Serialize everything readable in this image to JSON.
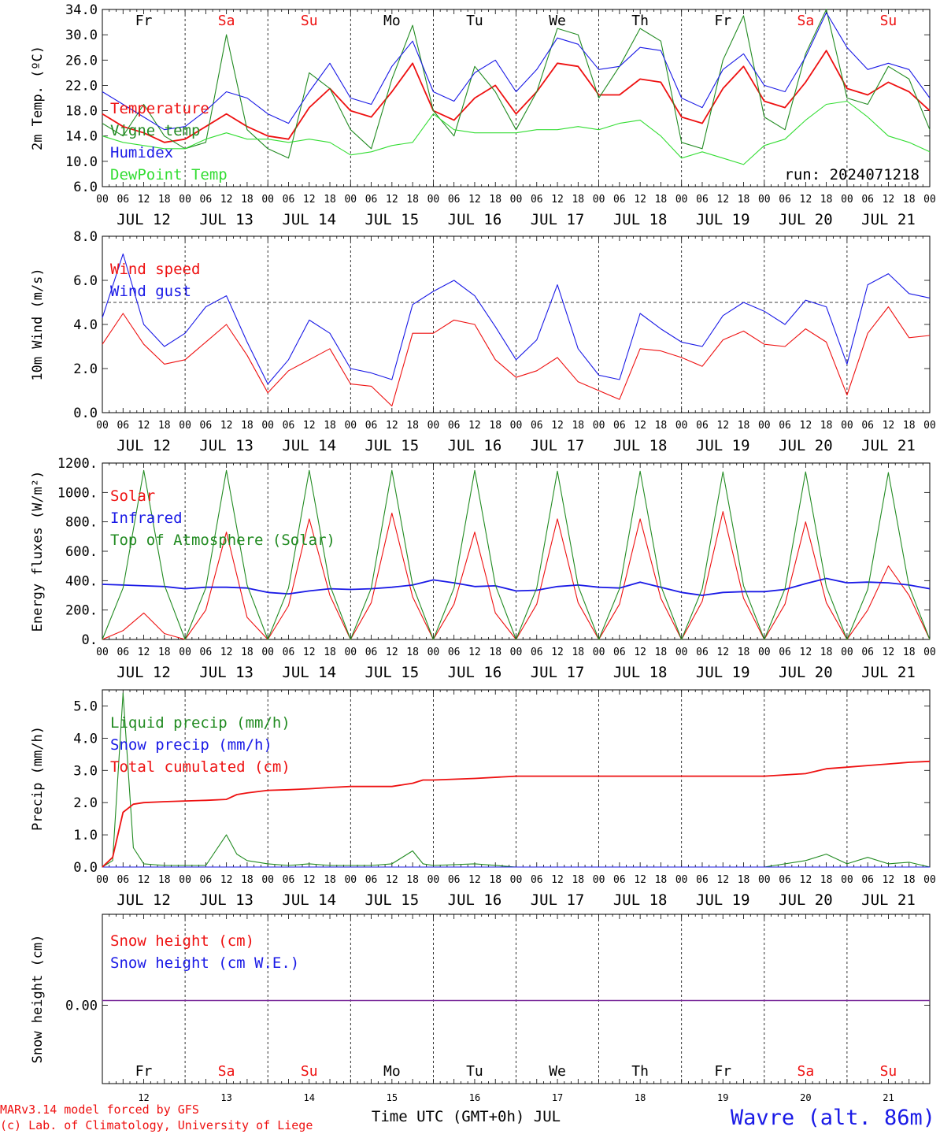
{
  "colors": {
    "red": "#ee1111",
    "blue": "#1a1ae6",
    "dark_green": "#228b22",
    "light_green": "#33dd33",
    "purple": "#7a2a9a",
    "axis": "#000000"
  },
  "days": [
    "Fr",
    "Sa",
    "Su",
    "Mo",
    "Tu",
    "We",
    "Th",
    "Fr",
    "Sa",
    "Su"
  ],
  "day_colors": [
    "#000000",
    "#ee1111",
    "#ee1111",
    "#000000",
    "#000000",
    "#000000",
    "#000000",
    "#000000",
    "#ee1111",
    "#ee1111"
  ],
  "dates": [
    "JUL 12",
    "JUL 13",
    "JUL 14",
    "JUL 15",
    "JUL 16",
    "JUL 17",
    "JUL 18",
    "JUL 19",
    "JUL 20",
    "JUL 21"
  ],
  "day_numbers": [
    "12",
    "13",
    "14",
    "15",
    "16",
    "17",
    "18",
    "19",
    "20",
    "21"
  ],
  "hour_ticks": [
    "00",
    "06",
    "12",
    "18"
  ],
  "run_label": "run: 2024071218",
  "footer": {
    "credit_line1": "MARv3.14 model forced by GFS",
    "credit_line2": "(c) Lab. of Climatology, University of Liege",
    "xlabel": "Time UTC (GMT+0h) JUL",
    "station": "Wavre (alt. 86m)"
  },
  "chart_data": [
    {
      "type": "line",
      "ylabel": "2m Temp. (ºC)",
      "ylim": [
        6,
        34
      ],
      "yticks": [
        "34.0",
        "30.0",
        "26.0",
        "22.0",
        "18.0",
        "14.0",
        "10.0",
        "6.0"
      ],
      "x": [
        "07-12 00",
        "07-12 06",
        "07-12 12",
        "07-12 18",
        "07-13 00",
        "07-13 06",
        "07-13 12",
        "07-13 18",
        "07-14 00",
        "07-14 06",
        "07-14 12",
        "07-14 18",
        "07-15 00",
        "07-15 06",
        "07-15 12",
        "07-15 18",
        "07-16 00",
        "07-16 06",
        "07-16 12",
        "07-16 18",
        "07-17 00",
        "07-17 06",
        "07-17 12",
        "07-17 18",
        "07-18 00",
        "07-18 06",
        "07-18 12",
        "07-18 18",
        "07-19 00",
        "07-19 06",
        "07-19 12",
        "07-19 18",
        "07-20 00",
        "07-20 06",
        "07-20 12",
        "07-20 18",
        "07-21 00",
        "07-21 06",
        "07-21 12",
        "07-21 18",
        "07-22 00"
      ],
      "series": [
        {
          "name": "Temperature",
          "color": "#ee1111",
          "values": [
            17.5,
            15.5,
            14.5,
            13,
            13.5,
            15.5,
            17.5,
            15.5,
            14,
            13.5,
            18.5,
            21.5,
            18,
            17,
            21,
            25.5,
            18,
            16.5,
            20,
            22,
            17.5,
            21,
            25.5,
            25,
            20.5,
            20.5,
            23,
            22.5,
            17,
            16,
            21.5,
            25,
            19.5,
            18.5,
            22.5,
            27.5,
            21.5,
            20.5,
            22.5,
            21,
            18
          ]
        },
        {
          "name": "Vigne temp",
          "color": "#228b22",
          "values": [
            16,
            14,
            19,
            14,
            12,
            13,
            30,
            15,
            12,
            10.5,
            24,
            21.5,
            15,
            12,
            23,
            31.5,
            18,
            14,
            25,
            21,
            15,
            21,
            31,
            30,
            20,
            25,
            31,
            29,
            13,
            12,
            26,
            33,
            17,
            15,
            27,
            34,
            20,
            19,
            25,
            23,
            15
          ]
        },
        {
          "name": "Humidex",
          "color": "#1a1ae6",
          "values": [
            21,
            19,
            17,
            15,
            15.5,
            18,
            21,
            20,
            17.5,
            16,
            21,
            25.5,
            20,
            19,
            25,
            29,
            21,
            19.5,
            24,
            26,
            21,
            24.5,
            29.5,
            28.5,
            24.5,
            25,
            28,
            27.5,
            20,
            18.5,
            24.5,
            27,
            22,
            21,
            26.5,
            33.5,
            28,
            24.5,
            25.5,
            24.5,
            20
          ]
        },
        {
          "name": "DewPoint Temp",
          "color": "#33dd33",
          "values": [
            14,
            13,
            12.5,
            12,
            12,
            13.5,
            14.5,
            13.5,
            13.5,
            13,
            13.5,
            13,
            11,
            11.5,
            12.5,
            13,
            17.5,
            15,
            14.5,
            14.5,
            14.5,
            15,
            15,
            15.5,
            15,
            16,
            16.5,
            14,
            10.5,
            11.5,
            10.5,
            9.5,
            12.5,
            13.5,
            16.5,
            19,
            19.5,
            17,
            14,
            13,
            11.5
          ]
        }
      ]
    },
    {
      "type": "line",
      "ylabel": "10m Wind (m/s)",
      "ylim": [
        0,
        8
      ],
      "yticks": [
        "8.0",
        "6.0",
        "4.0",
        "2.0",
        "0.0"
      ],
      "reference_line": 5,
      "x": [
        "07-12 00",
        "07-12 06",
        "07-12 12",
        "07-12 18",
        "07-13 00",
        "07-13 06",
        "07-13 12",
        "07-13 18",
        "07-14 00",
        "07-14 06",
        "07-14 12",
        "07-14 18",
        "07-15 00",
        "07-15 06",
        "07-15 12",
        "07-15 18",
        "07-16 00",
        "07-16 06",
        "07-16 12",
        "07-16 18",
        "07-17 00",
        "07-17 06",
        "07-17 12",
        "07-17 18",
        "07-18 00",
        "07-18 06",
        "07-18 12",
        "07-18 18",
        "07-19 00",
        "07-19 06",
        "07-19 12",
        "07-19 18",
        "07-20 00",
        "07-20 06",
        "07-20 12",
        "07-20 18",
        "07-21 00",
        "07-21 06",
        "07-21 12",
        "07-21 18",
        "07-22 00"
      ],
      "series": [
        {
          "name": "Wind speed",
          "color": "#ee1111",
          "values": [
            3.1,
            4.5,
            3.1,
            2.2,
            2.4,
            3.2,
            4.0,
            2.6,
            0.9,
            1.9,
            2.4,
            2.9,
            1.3,
            1.2,
            0.3,
            3.6,
            3.6,
            4.2,
            4.0,
            2.4,
            1.6,
            1.9,
            2.5,
            1.4,
            1.0,
            0.6,
            2.9,
            2.8,
            2.5,
            2.1,
            3.3,
            3.7,
            3.1,
            3.0,
            3.8,
            3.2,
            0.8,
            3.6,
            4.8,
            3.4,
            3.5
          ]
        },
        {
          "name": "Wind gust",
          "color": "#1a1ae6",
          "values": [
            4.3,
            7.2,
            4.0,
            3.0,
            3.6,
            4.8,
            5.3,
            3.2,
            1.3,
            2.4,
            4.2,
            3.6,
            2.0,
            1.8,
            1.5,
            4.9,
            5.5,
            6.0,
            5.3,
            3.9,
            2.4,
            3.3,
            5.8,
            2.9,
            1.7,
            1.5,
            4.5,
            3.8,
            3.2,
            3.0,
            4.4,
            5.0,
            4.6,
            4.0,
            5.1,
            4.8,
            2.2,
            5.8,
            6.3,
            5.4,
            5.2
          ]
        }
      ]
    },
    {
      "type": "line",
      "ylabel": "Energy fluxes (W/m²)",
      "ylim": [
        0,
        1200
      ],
      "yticks": [
        "1200.",
        "1000.",
        "800.",
        "600.",
        "400.",
        "200.",
        "0."
      ],
      "x": [
        "07-12 00",
        "07-12 06",
        "07-12 12",
        "07-12 18",
        "07-13 00",
        "07-13 06",
        "07-13 12",
        "07-13 18",
        "07-14 00",
        "07-14 06",
        "07-14 12",
        "07-14 18",
        "07-15 00",
        "07-15 06",
        "07-15 12",
        "07-15 18",
        "07-16 00",
        "07-16 06",
        "07-16 12",
        "07-16 18",
        "07-17 00",
        "07-17 06",
        "07-17 12",
        "07-17 18",
        "07-18 00",
        "07-18 06",
        "07-18 12",
        "07-18 18",
        "07-19 00",
        "07-19 06",
        "07-19 12",
        "07-19 18",
        "07-20 00",
        "07-20 06",
        "07-20 12",
        "07-20 18",
        "07-21 00",
        "07-21 06",
        "07-21 12",
        "07-21 18",
        "07-22 00"
      ],
      "series": [
        {
          "name": "Solar",
          "color": "#ee1111",
          "values": [
            0,
            60,
            180,
            40,
            0,
            200,
            730,
            150,
            0,
            230,
            820,
            300,
            0,
            250,
            860,
            290,
            0,
            240,
            730,
            180,
            0,
            240,
            820,
            250,
            0,
            240,
            820,
            280,
            0,
            260,
            870,
            280,
            0,
            240,
            800,
            250,
            0,
            200,
            500,
            300,
            0
          ]
        },
        {
          "name": "Infrared",
          "color": "#1a1ae6",
          "values": [
            375,
            370,
            365,
            360,
            345,
            355,
            355,
            350,
            320,
            310,
            330,
            345,
            340,
            345,
            355,
            370,
            405,
            385,
            360,
            365,
            330,
            335,
            360,
            370,
            355,
            350,
            390,
            355,
            320,
            300,
            320,
            325,
            325,
            340,
            380,
            415,
            385,
            390,
            385,
            370,
            345
          ]
        },
        {
          "name": "Top of Atmosphere (Solar)",
          "color": "#228b22",
          "values": [
            0,
            350,
            1150,
            370,
            0,
            350,
            1150,
            370,
            0,
            350,
            1150,
            370,
            0,
            350,
            1150,
            370,
            0,
            350,
            1150,
            370,
            0,
            350,
            1145,
            365,
            0,
            345,
            1145,
            365,
            0,
            345,
            1140,
            365,
            0,
            345,
            1140,
            360,
            0,
            340,
            1135,
            360,
            0
          ]
        }
      ]
    },
    {
      "type": "line",
      "ylabel": "Precip (mm/h)",
      "ylim": [
        0,
        5.5
      ],
      "yticks": [
        "5.0",
        "4.0",
        "3.0",
        "2.0",
        "1.0",
        "0.0"
      ],
      "x": [
        "07-12 00",
        "07-12 03",
        "07-12 06",
        "07-12 09",
        "07-12 12",
        "07-12 18",
        "07-13 00",
        "07-13 06",
        "07-13 12",
        "07-13 15",
        "07-13 18",
        "07-14 00",
        "07-14 06",
        "07-14 12",
        "07-14 18",
        "07-15 00",
        "07-15 06",
        "07-15 12",
        "07-15 18",
        "07-15 21",
        "07-16 00",
        "07-16 12",
        "07-17 00",
        "07-17 12",
        "07-18 00",
        "07-18 12",
        "07-19 00",
        "07-19 12",
        "07-20 00",
        "07-20 12",
        "07-20 18",
        "07-21 00",
        "07-21 06",
        "07-21 12",
        "07-21 18",
        "07-22 00"
      ],
      "series": [
        {
          "name": "Liquid precip (mm/h)",
          "color": "#228b22",
          "values": [
            0,
            0.2,
            5.4,
            0.6,
            0.1,
            0.05,
            0.05,
            0.05,
            1.0,
            0.4,
            0.2,
            0.1,
            0.05,
            0.1,
            0.05,
            0.05,
            0.05,
            0.1,
            0.5,
            0.1,
            0.05,
            0.1,
            0,
            0,
            0,
            0,
            0,
            0,
            0,
            0.2,
            0.4,
            0.1,
            0.3,
            0.1,
            0.15,
            0
          ]
        },
        {
          "name": "Snow precip (mm/h)",
          "color": "#1a1ae6",
          "values": [
            0,
            0,
            0,
            0,
            0,
            0,
            0,
            0,
            0,
            0,
            0,
            0,
            0,
            0,
            0,
            0,
            0,
            0,
            0,
            0,
            0,
            0,
            0,
            0,
            0,
            0,
            0,
            0,
            0,
            0,
            0,
            0,
            0,
            0,
            0,
            0
          ]
        },
        {
          "name": "Total cumulated (cm)",
          "color": "#ee1111",
          "values": [
            0,
            0.3,
            1.7,
            1.95,
            2.0,
            2.03,
            2.05,
            2.07,
            2.1,
            2.25,
            2.3,
            2.38,
            2.4,
            2.43,
            2.47,
            2.5,
            2.5,
            2.5,
            2.6,
            2.7,
            2.7,
            2.75,
            2.82,
            2.82,
            2.82,
            2.82,
            2.82,
            2.82,
            2.82,
            2.9,
            3.05,
            3.1,
            3.15,
            3.2,
            3.25,
            3.28
          ]
        }
      ]
    },
    {
      "type": "line",
      "ylabel": "Snow height (cm)",
      "yticks": [
        "0.00"
      ],
      "x": [
        "07-12 00",
        "07-22 00"
      ],
      "series": [
        {
          "name": "Snow height (cm)",
          "color": "#ee1111",
          "values": [
            0,
            0
          ]
        },
        {
          "name": "Snow height (cm W.E.)",
          "color": "#1a1ae6",
          "values": [
            0,
            0
          ]
        }
      ]
    }
  ]
}
